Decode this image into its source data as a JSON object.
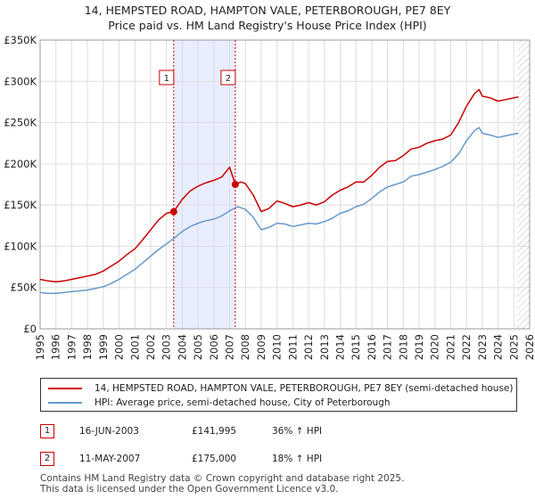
{
  "title_line1": "14, HEMPSTED ROAD, HAMPTON VALE, PETERBOROUGH, PE7 8EY",
  "title_line2": "Price paid vs. HM Land Registry's House Price Index (HPI)",
  "colors": {
    "property": "#cc0000",
    "hpi": "#6699cc",
    "shade": "#e8eeff",
    "grid": "#dddddd",
    "hatch": "#bbbbbb"
  },
  "chart_data": {
    "type": "line",
    "title": "14, HEMPSTED ROAD, HAMPTON VALE, PETERBOROUGH, PE7 8EY",
    "subtitle": "Price paid vs. HM Land Registry's House Price Index (HPI)",
    "xlabel": "",
    "ylabel": "",
    "xlim": [
      1995,
      2026
    ],
    "ylim": [
      0,
      350000
    ],
    "yticks": [
      0,
      50000,
      100000,
      150000,
      200000,
      250000,
      300000,
      350000
    ],
    "ytick_labels": [
      "£0",
      "£50K",
      "£100K",
      "£150K",
      "£200K",
      "£250K",
      "£300K",
      "£350K"
    ],
    "xticks": [
      1995,
      1996,
      1997,
      1998,
      1999,
      2000,
      2001,
      2002,
      2003,
      2004,
      2005,
      2006,
      2007,
      2008,
      2009,
      2010,
      2011,
      2012,
      2013,
      2014,
      2015,
      2016,
      2017,
      2018,
      2019,
      2020,
      2021,
      2022,
      2023,
      2024,
      2025,
      2026
    ],
    "grid": true,
    "shaded_period": [
      2003.46,
      2007.36
    ],
    "forecast_hatch_start": 2025.2,
    "series": [
      {
        "name": "14, HEMPSTED ROAD, HAMPTON VALE, PETERBOROUGH, PE7 8EY (semi-detached house)",
        "color": "#cc0000",
        "x": [
          1995.0,
          1995.5,
          1996.0,
          1996.5,
          1997.0,
          1997.5,
          1998.0,
          1998.5,
          1999.0,
          1999.5,
          2000.0,
          2000.5,
          2001.0,
          2001.5,
          2002.0,
          2002.5,
          2003.0,
          2003.46,
          2004.0,
          2004.5,
          2005.0,
          2005.5,
          2006.0,
          2006.5,
          2007.0,
          2007.36,
          2007.7,
          2008.0,
          2008.5,
          2009.0,
          2009.5,
          2010.0,
          2010.5,
          2011.0,
          2011.5,
          2012.0,
          2012.5,
          2013.0,
          2013.5,
          2014.0,
          2014.5,
          2015.0,
          2015.5,
          2016.0,
          2016.5,
          2017.0,
          2017.5,
          2018.0,
          2018.5,
          2019.0,
          2019.5,
          2020.0,
          2020.5,
          2021.0,
          2021.5,
          2022.0,
          2022.5,
          2022.8,
          2023.0,
          2023.5,
          2024.0,
          2024.5,
          2025.0,
          2025.3
        ],
        "values": [
          60000,
          58000,
          57000,
          58000,
          60000,
          62000,
          64000,
          66000,
          70000,
          76000,
          82000,
          90000,
          97000,
          108000,
          120000,
          132000,
          140000,
          141995,
          157000,
          167000,
          173000,
          177000,
          180000,
          184000,
          196000,
          175000,
          178000,
          176000,
          162000,
          142000,
          146000,
          155000,
          152000,
          148000,
          150000,
          153000,
          150000,
          154000,
          162000,
          168000,
          172000,
          178000,
          178000,
          186000,
          196000,
          203000,
          204000,
          210000,
          218000,
          220000,
          225000,
          228000,
          230000,
          235000,
          250000,
          270000,
          285000,
          290000,
          282000,
          280000,
          276000,
          278000,
          280000,
          281000
        ]
      },
      {
        "name": "HPI: Average price, semi-detached house, City of Peterborough",
        "color": "#6699cc",
        "x": [
          1995.0,
          1995.5,
          1996.0,
          1996.5,
          1997.0,
          1997.5,
          1998.0,
          1998.5,
          1999.0,
          1999.5,
          2000.0,
          2000.5,
          2001.0,
          2001.5,
          2002.0,
          2002.5,
          2003.0,
          2003.5,
          2004.0,
          2004.5,
          2005.0,
          2005.5,
          2006.0,
          2006.5,
          2007.0,
          2007.5,
          2008.0,
          2008.5,
          2009.0,
          2009.5,
          2010.0,
          2010.5,
          2011.0,
          2011.5,
          2012.0,
          2012.5,
          2013.0,
          2013.5,
          2014.0,
          2014.5,
          2015.0,
          2015.5,
          2016.0,
          2016.5,
          2017.0,
          2017.5,
          2018.0,
          2018.5,
          2019.0,
          2019.5,
          2020.0,
          2020.5,
          2021.0,
          2021.5,
          2022.0,
          2022.5,
          2022.8,
          2023.0,
          2023.5,
          2024.0,
          2024.5,
          2025.0,
          2025.3
        ],
        "values": [
          44000,
          43000,
          43000,
          44000,
          45000,
          46000,
          47000,
          49000,
          51000,
          55000,
          60000,
          66000,
          72000,
          80000,
          88000,
          96000,
          103000,
          110000,
          118000,
          124000,
          128000,
          131000,
          133000,
          137000,
          143000,
          148000,
          145000,
          135000,
          120000,
          123000,
          128000,
          127000,
          124000,
          126000,
          128000,
          127000,
          130000,
          134000,
          140000,
          143000,
          148000,
          151000,
          158000,
          166000,
          172000,
          175000,
          178000,
          185000,
          187000,
          190000,
          193000,
          197000,
          202000,
          212000,
          228000,
          240000,
          244000,
          237000,
          235000,
          232000,
          234000,
          236000,
          237000
        ]
      }
    ],
    "annotations": [
      {
        "label": "1",
        "x": 2003.46,
        "y": 141995
      },
      {
        "label": "2",
        "x": 2007.36,
        "y": 175000
      }
    ]
  },
  "legend": {
    "property_label": "14, HEMPSTED ROAD, HAMPTON VALE, PETERBOROUGH, PE7 8EY (semi-detached house)",
    "hpi_label": "HPI: Average price, semi-detached house, City of Peterborough"
  },
  "transactions": [
    {
      "id": "1",
      "date": "16-JUN-2003",
      "price": "£141,995",
      "hpi_change": "36% ↑ HPI"
    },
    {
      "id": "2",
      "date": "11-MAY-2007",
      "price": "£175,000",
      "hpi_change": "18% ↑ HPI"
    }
  ],
  "footer": {
    "line1": "Contains HM Land Registry data © Crown copyright and database right 2025.",
    "line2": "This data is licensed under the Open Government Licence v3.0."
  }
}
